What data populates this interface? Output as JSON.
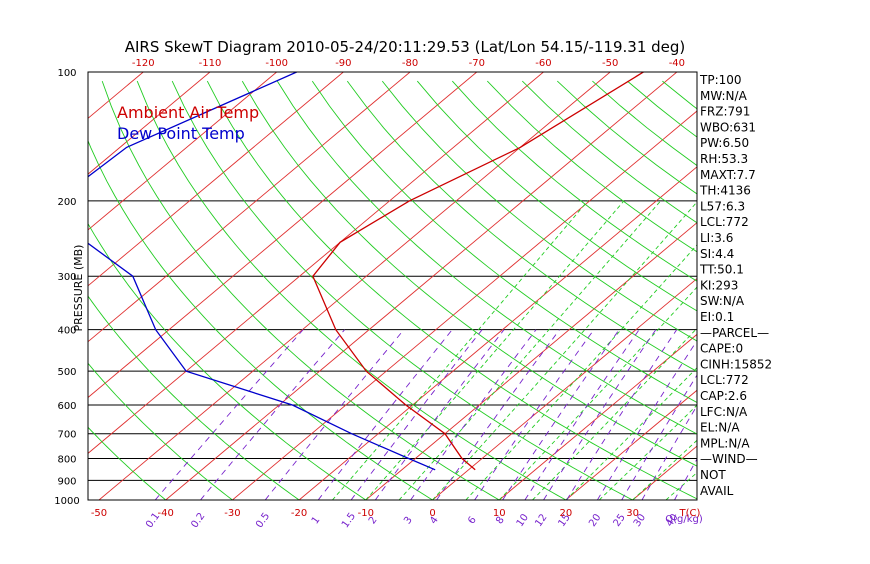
{
  "chart_data": {
    "type": "line",
    "title": "AIRS SkewT Diagram 2010-05-24/20:11:29.53 (Lat/Lon 54.15/-119.31 deg)",
    "ylabel": "PRESSURE (MB)",
    "y_scale": "log",
    "y_reversed": true,
    "ylim": [
      1000,
      100
    ],
    "y_ticks": [
      "100",
      "200",
      "300",
      "400",
      "500",
      "600",
      "700",
      "800",
      "900",
      "1000"
    ],
    "top_temp_ticks": [
      "-120",
      "-110",
      "-100",
      "-90",
      "-80",
      "-70",
      "-60",
      "-50",
      "-40"
    ],
    "bottom_temp_ticks": [
      "-50",
      "-40",
      "-30",
      "-20",
      "-10",
      "0",
      "10",
      "20",
      "30"
    ],
    "bottom_temp_unit": "T(C)",
    "mixing_ratio_labels": [
      "0.1",
      "0.2",
      "0.5",
      "1",
      "1.5",
      "2",
      "3",
      "4",
      "6",
      "8",
      "10",
      "12",
      "15",
      "20",
      "25",
      "30",
      "40"
    ],
    "mixing_ratio_unit": "Q(g/kg)",
    "legend_position": "top-left",
    "grid": true,
    "series": [
      {
        "name": "Ambient Air Temp",
        "color": "#cc0000",
        "points": [
          {
            "p": 100,
            "t": -45
          },
          {
            "p": 150,
            "t": -50
          },
          {
            "p": 200,
            "t": -57
          },
          {
            "p": 250,
            "t": -60
          },
          {
            "p": 300,
            "t": -58
          },
          {
            "p": 400,
            "t": -45
          },
          {
            "p": 500,
            "t": -33
          },
          {
            "p": 600,
            "t": -21
          },
          {
            "p": 700,
            "t": -10
          },
          {
            "p": 800,
            "t": -3
          },
          {
            "p": 850,
            "t": 1
          }
        ]
      },
      {
        "name": "Dew Point Temp",
        "color": "#0000cc",
        "points": [
          {
            "p": 100,
            "t": -97
          },
          {
            "p": 150,
            "t": -109
          },
          {
            "p": 200,
            "t": -110
          },
          {
            "p": 250,
            "t": -98
          },
          {
            "p": 300,
            "t": -85
          },
          {
            "p": 400,
            "t": -72
          },
          {
            "p": 500,
            "t": -60
          },
          {
            "p": 600,
            "t": -38
          },
          {
            "p": 700,
            "t": -24
          },
          {
            "p": 800,
            "t": -11
          },
          {
            "p": 850,
            "t": -5
          }
        ]
      }
    ]
  },
  "indices": [
    "TP:100",
    "MW:N/A",
    "FRZ:791",
    "WBO:631",
    "PW:6.50",
    "RH:53.3",
    "MAXT:7.7",
    "TH:4136",
    "L57:6.3",
    "LCL:772",
    "LI:3.6",
    "SI:4.4",
    "TT:50.1",
    "KI:293",
    "SW:N/A",
    "EI:0.1",
    "—PARCEL—",
    "CAPE:0",
    "CINH:15852",
    "LCL:772",
    "CAP:2.6",
    "LFC:N/A",
    "EL:N/A",
    "MPL:N/A",
    "—WIND—",
    "NOT",
    "AVAIL"
  ],
  "colors": {
    "temp_grid": "#e03030",
    "adiabat": "#22cc22",
    "moist": "#22cc22",
    "mixing": "#7722cc",
    "axis_text": "#cc0000",
    "mixing_text": "#7722cc"
  }
}
